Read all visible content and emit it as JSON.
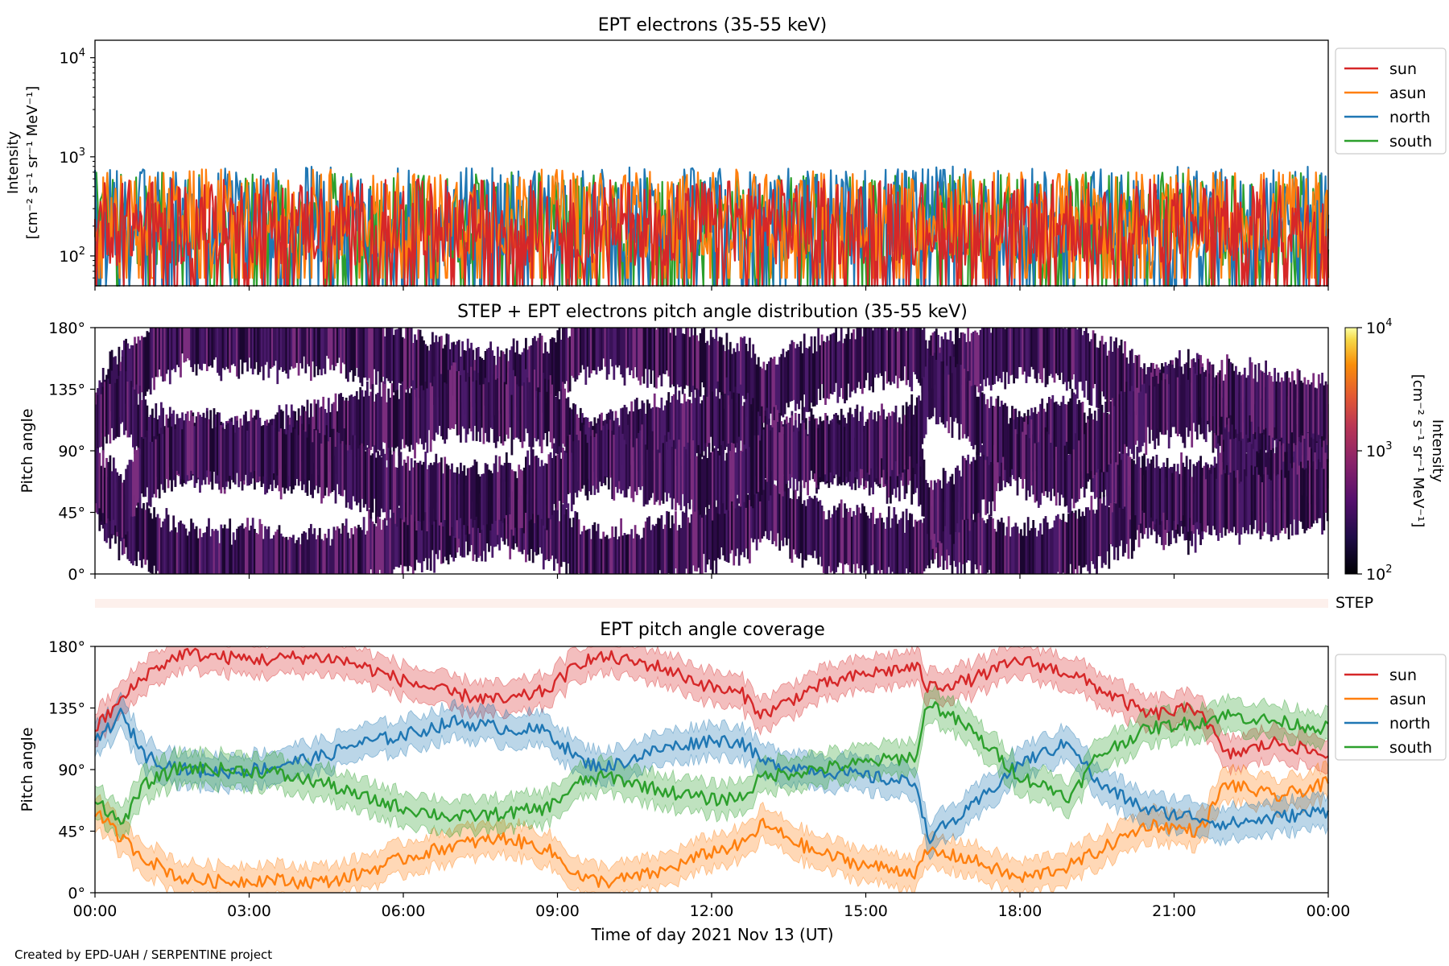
{
  "credit": "Created by EPD-UAH / SERPENTINE project",
  "colors": {
    "sun": "#d62728",
    "asun": "#ff7f0e",
    "north": "#1f77b4",
    "south": "#2ca02c",
    "step_strip": "#fdf0ec",
    "pad_dark": "#2b0a45",
    "pad_mid": "#4a1a6b",
    "pad_light": "#7a2d7e"
  },
  "chart_data": [
    {
      "type": "line",
      "title": "EPT electrons (35-55 keV)",
      "ylabel_line1": "Intensity",
      "ylabel_line2": "[cm⁻² s⁻¹ sr⁻¹ MeV⁻¹]",
      "yscale": "log",
      "ylim": [
        50,
        15000
      ],
      "yticks": [
        {
          "value": 100,
          "base": "10",
          "exp": "2"
        },
        {
          "value": 1000,
          "base": "10",
          "exp": "3"
        },
        {
          "value": 10000,
          "base": "10",
          "exp": "4"
        }
      ],
      "xlim_hours": [
        0,
        24
      ],
      "legend": {
        "placement": "outside-right",
        "entries": [
          "sun",
          "asun",
          "north",
          "south"
        ]
      },
      "series": [
        {
          "name": "sun",
          "typical_range": [
            50,
            600
          ]
        },
        {
          "name": "asun",
          "typical_range": [
            60,
            750
          ]
        },
        {
          "name": "north",
          "typical_range": [
            50,
            800
          ]
        },
        {
          "name": "south",
          "typical_range": [
            50,
            700
          ]
        }
      ]
    },
    {
      "type": "heatmap",
      "title": "STEP + EPT electrons pitch angle distribution (35-55 keV)",
      "ylabel": "Pitch angle",
      "ylim": [
        0,
        180
      ],
      "yticks": [
        "0°",
        "45°",
        "90°",
        "135°",
        "180°"
      ],
      "xlim_hours": [
        0,
        24
      ],
      "colorbar": {
        "scale": "log",
        "range": [
          100,
          10000
        ],
        "ticks": [
          {
            "base": "10",
            "exp": "2"
          },
          {
            "base": "10",
            "exp": "3"
          },
          {
            "base": "10",
            "exp": "4"
          }
        ],
        "label_line1": "Intensity",
        "label_line2": "[cm⁻² s⁻¹ sr⁻¹ MeV⁻¹]"
      },
      "step_label": "STEP"
    },
    {
      "type": "line",
      "title": "EPT pitch angle coverage",
      "ylabel": "Pitch angle",
      "ylim": [
        0,
        180
      ],
      "yticks": [
        "0°",
        "45°",
        "90°",
        "135°",
        "180°"
      ],
      "xlim_hours": [
        0,
        24
      ],
      "xticks": [
        "00:00",
        "03:00",
        "06:00",
        "09:00",
        "12:00",
        "15:00",
        "18:00",
        "21:00",
        "00:00"
      ],
      "xlabel": "Time of day 2021 Nov 13 (UT)",
      "legend": {
        "placement": "outside-right",
        "entries": [
          "sun",
          "asun",
          "north",
          "south"
        ]
      },
      "band_halfwidth_deg": 12,
      "series": [
        {
          "name": "sun",
          "x": [
            0,
            0.5,
            1,
            1.7,
            2.5,
            3.5,
            3.7,
            4.5,
            5,
            6,
            7,
            8,
            8.8,
            9.5,
            10,
            11,
            12,
            12.6,
            13,
            14,
            15,
            16,
            16.2,
            17,
            18,
            19,
            19.5,
            20.5,
            21.5,
            22,
            23,
            24
          ],
          "y": [
            120,
            140,
            160,
            175,
            172,
            170,
            172,
            172,
            168,
            155,
            145,
            140,
            148,
            170,
            172,
            165,
            150,
            145,
            130,
            150,
            160,
            165,
            150,
            155,
            170,
            160,
            150,
            130,
            135,
            100,
            110,
            100
          ]
        },
        {
          "name": "asun",
          "x": [
            0,
            0.5,
            1,
            1.7,
            2.5,
            3.5,
            3.7,
            4.5,
            5,
            6,
            7,
            8,
            8.8,
            9.5,
            10,
            11,
            12,
            12.6,
            13,
            14,
            15,
            16,
            16.2,
            17,
            18,
            19,
            19.5,
            20.5,
            21.5,
            22,
            23,
            24
          ],
          "y": [
            60,
            40,
            25,
            10,
            8,
            10,
            8,
            8,
            12,
            25,
            35,
            40,
            32,
            10,
            8,
            15,
            30,
            35,
            50,
            30,
            20,
            15,
            30,
            25,
            10,
            20,
            30,
            50,
            45,
            80,
            70,
            80
          ]
        },
        {
          "name": "north",
          "x": [
            0,
            0.5,
            1,
            1.7,
            2.5,
            3.5,
            3.7,
            4.5,
            5,
            6,
            7,
            8,
            8.8,
            9.5,
            10,
            11,
            12,
            12.6,
            13,
            14,
            15,
            16,
            16.2,
            17,
            18,
            19,
            19.5,
            20.5,
            21.5,
            22,
            23,
            24
          ],
          "y": [
            110,
            130,
            100,
            90,
            88,
            92,
            95,
            100,
            108,
            115,
            125,
            120,
            118,
            95,
            92,
            105,
            112,
            110,
            95,
            90,
            85,
            80,
            40,
            60,
            95,
            110,
            80,
            60,
            55,
            50,
            55,
            60
          ]
        },
        {
          "name": "south",
          "x": [
            0,
            0.5,
            1,
            1.7,
            2.5,
            3.5,
            3.7,
            4.5,
            5,
            6,
            7,
            8,
            8.8,
            9.5,
            10,
            11,
            12,
            12.6,
            13,
            14,
            15,
            16,
            16.2,
            17,
            18,
            19,
            19.5,
            20.5,
            21.5,
            22,
            23,
            24
          ],
          "y": [
            70,
            50,
            80,
            92,
            90,
            88,
            85,
            80,
            72,
            62,
            55,
            58,
            62,
            82,
            85,
            75,
            68,
            70,
            85,
            90,
            95,
            100,
            140,
            120,
            85,
            70,
            100,
            120,
            125,
            130,
            125,
            120
          ]
        }
      ]
    }
  ]
}
